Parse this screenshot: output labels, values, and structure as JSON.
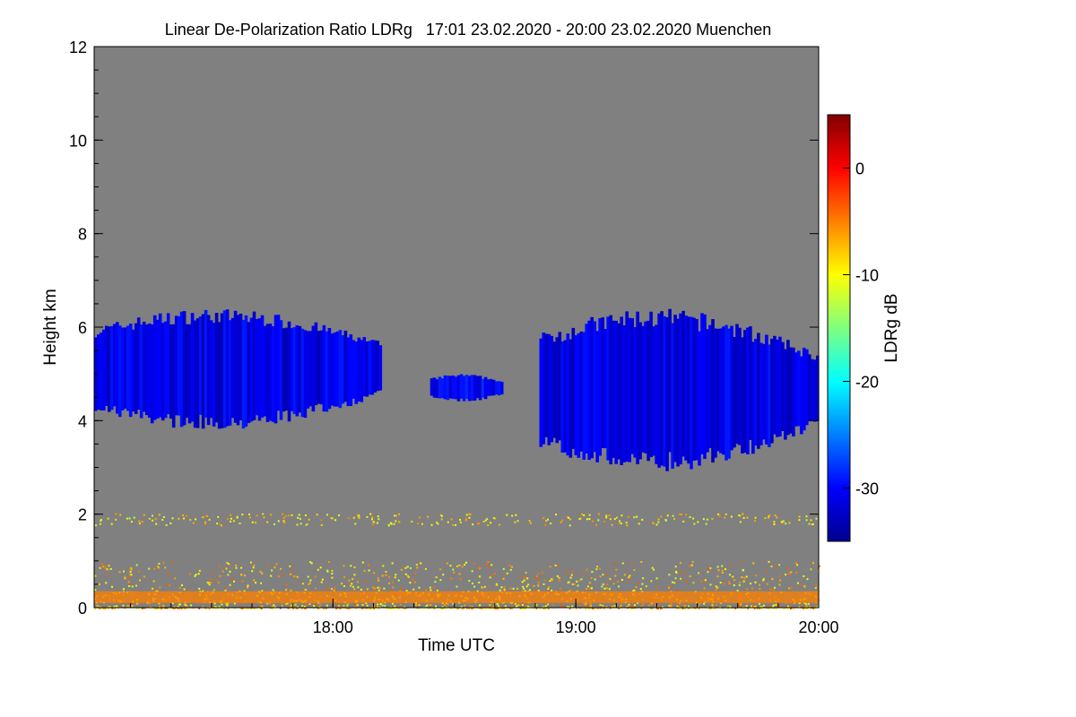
{
  "chart_data": {
    "type": "heatmap",
    "title": "Linear De-Polarization Ratio LDRg   17:01 23.02.2020 - 20:00 23.02.2020 Muenchen",
    "xlabel": "Time UTC",
    "ylabel": "Height km",
    "colorbar_label": "LDRg dB",
    "x_ticks": [
      "18:00",
      "19:00",
      "20:00"
    ],
    "x_tick_hours": [
      18.0,
      19.0,
      20.0
    ],
    "xlim_hours": [
      17.0167,
      20.0
    ],
    "y_ticks": [
      0,
      2,
      4,
      6,
      8,
      10,
      12
    ],
    "ylim": [
      0,
      12
    ],
    "colorbar_ticks": [
      0,
      -10,
      -20,
      -30
    ],
    "colorbar_range": [
      -35,
      5
    ],
    "colormap": "jet",
    "background_color": "#808080",
    "cloud_layers": [
      {
        "name": "",
        "t_start": 17.0167,
        "t_end": 18.2,
        "base_km": 3.8,
        "top_km": 6.4,
        "ldr_db": -31
      },
      {
        "name": "",
        "t_start": 18.4,
        "t_end": 18.7,
        "base_km": 4.4,
        "top_km": 5.0,
        "ldr_db": -30
      },
      {
        "name": "",
        "t_start": 18.85,
        "t_end": 20.0,
        "base_km": 2.9,
        "top_km": 6.4,
        "ldr_db": -31
      }
    ],
    "boundary_layer": {
      "top_km": 1.0,
      "ldr_db": -8
    },
    "aerosol_layer": {
      "height_km": 1.9,
      "ldr_db": -9
    }
  }
}
